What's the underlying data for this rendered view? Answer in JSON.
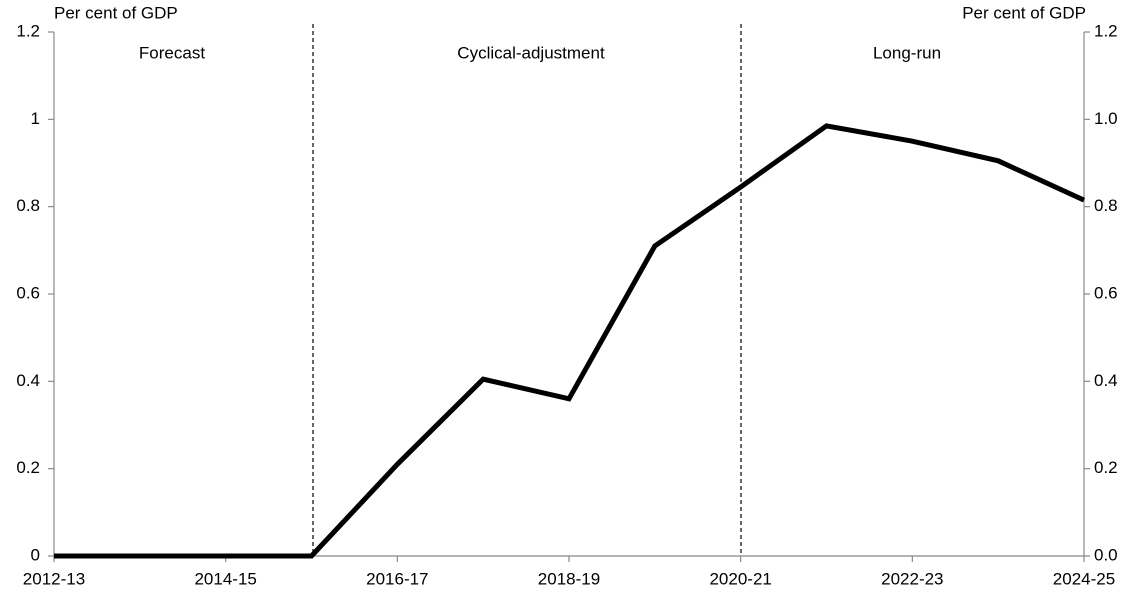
{
  "chart_data": {
    "type": "line",
    "y_axis_label": "Per cent of GDP",
    "y2_axis_label": "Per cent of GDP",
    "annotations": [
      "Forecast",
      "Cyclical-adjustment",
      "Long-run"
    ],
    "categories": [
      "2012-13",
      null,
      "2014-15",
      null,
      "2016-17",
      null,
      "2018-19",
      null,
      "2020-21",
      null,
      "2022-23",
      null,
      "2024-25"
    ],
    "series": [
      {
        "name": "Per cent of GDP",
        "color": "#000000",
        "values": [
          0,
          0,
          0,
          0,
          0.21,
          0.405,
          0.36,
          0.71,
          0.845,
          0.985,
          0.95,
          0.905,
          0.815
        ]
      }
    ],
    "ylim": [
      0,
      1.2
    ],
    "yticks": [
      0,
      0.2,
      0.4,
      0.6,
      0.8,
      1,
      1.2
    ],
    "y2lim": [
      0,
      1.2
    ],
    "y2ticks": [
      {
        "value": 0,
        "label": "0.0"
      },
      0.2,
      0.4,
      0.6,
      0.8,
      {
        "value": 1,
        "label": "1.0"
      },
      1.2
    ],
    "grid": false,
    "legend": false
  }
}
